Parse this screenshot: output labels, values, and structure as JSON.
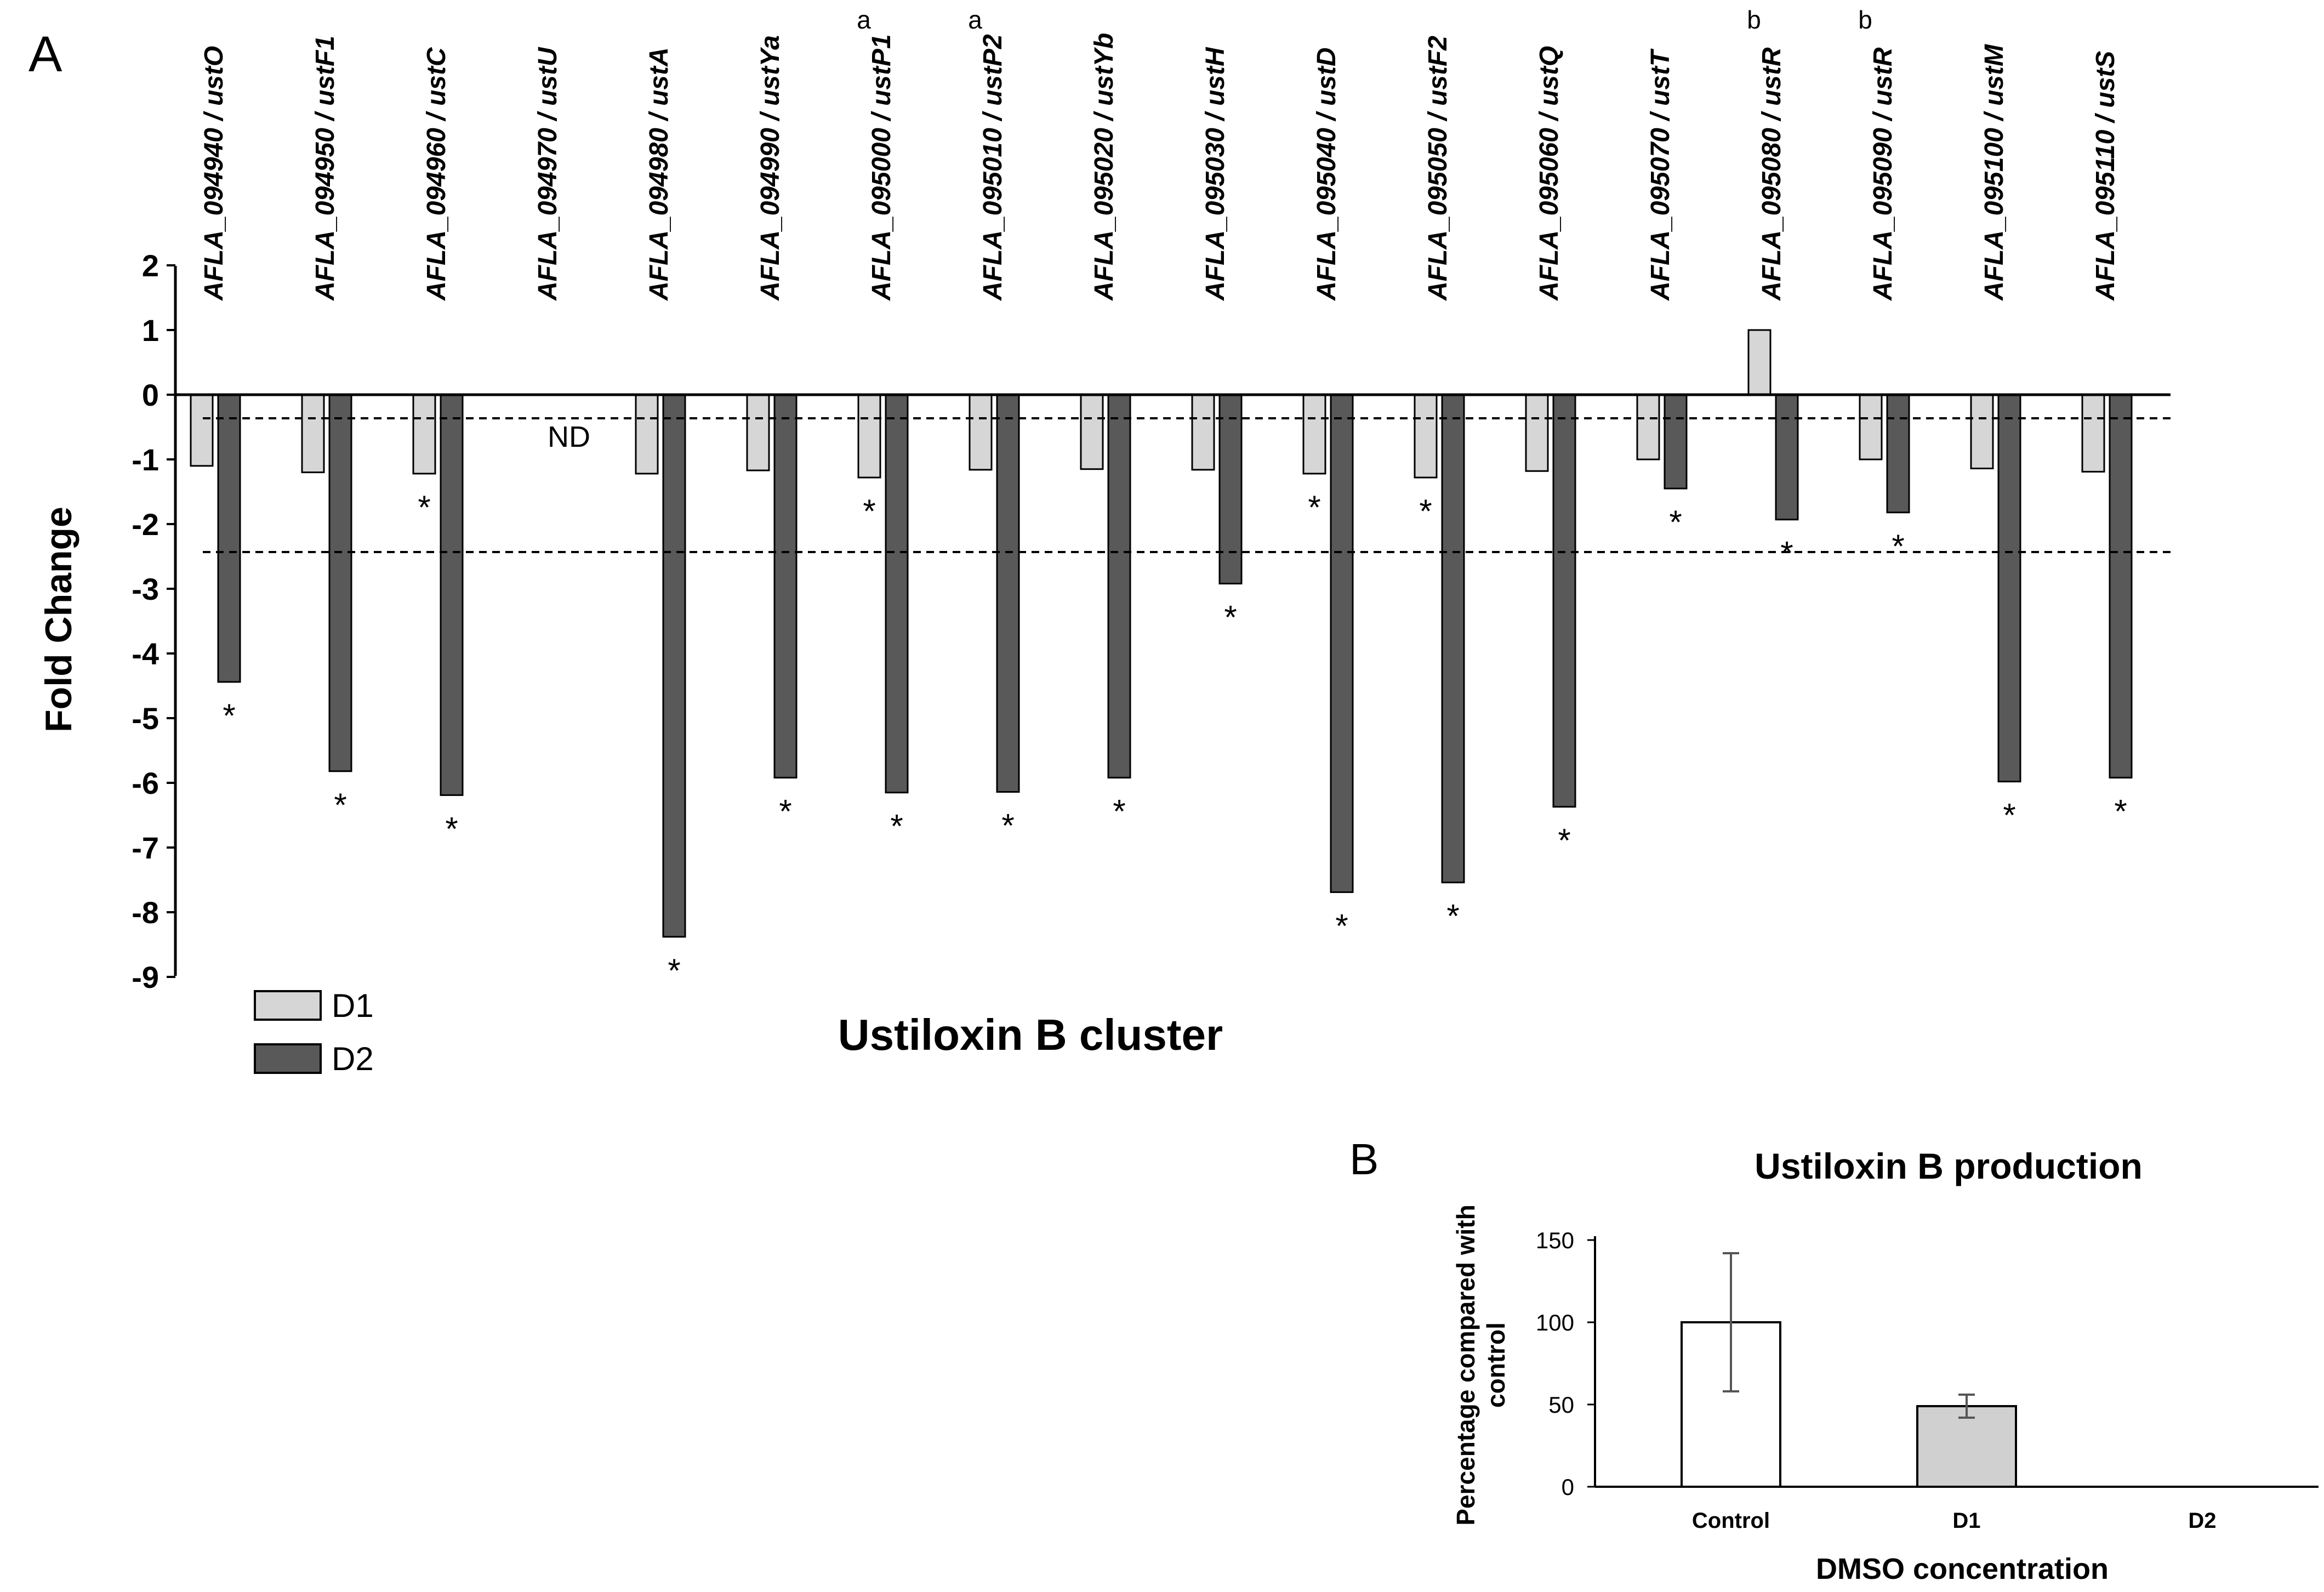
{
  "panel_a": {
    "letter": "A",
    "ylabel": "Fold Change",
    "xlabel": "Ustiloxin B cluster",
    "y_ticks": [
      "2",
      "1",
      "0",
      "-1",
      "-2",
      "-3",
      "-4",
      "-5",
      "-6",
      "-7",
      "-8",
      "-9"
    ],
    "nd_label": "ND",
    "sig_mark": "*",
    "legend": [
      "D1",
      "D2"
    ]
  },
  "panel_b": {
    "letter": "B",
    "title": "Ustiloxin B production",
    "ylabel_line1": "Percentage compared with",
    "ylabel_line2": "control",
    "xlabel": "DMSO concentration",
    "y_ticks": [
      "150",
      "100",
      "50",
      "0"
    ]
  },
  "colors": {
    "d1": "#d6d6d6",
    "d2": "#595959",
    "control": "#ffffff",
    "b_d1": "#d0d0d0",
    "axis": "#000000"
  },
  "chart_data": [
    {
      "type": "bar",
      "title": "",
      "xlabel": "Ustiloxin B cluster",
      "ylabel": "Fold Change",
      "ylim": [
        -9,
        2
      ],
      "categories": [
        "AFLA_094940",
        "AFLA_094950",
        "AFLA_094960",
        "AFLA_094970",
        "AFLA_094980",
        "AFLA_094990",
        "AFLA_095000",
        "AFLA_095010",
        "AFLA_095020",
        "AFLA_095030",
        "AFLA_095040",
        "AFLA_095050",
        "AFLA_095060",
        "AFLA_095070",
        "AFLA_095080",
        "AFLA_095090",
        "AFLA_095100",
        "AFLA_095110"
      ],
      "genes": [
        "ustO",
        "ustF1",
        "ustC",
        "ustU",
        "ustA",
        "ustYa",
        "ustP1",
        "ustP2",
        "ustYb",
        "ustH",
        "ustD",
        "ustF2",
        "ustQ",
        "ustT",
        "ustR",
        "ustR",
        "ustM",
        "ustS"
      ],
      "superscripts": [
        "",
        "",
        "",
        "",
        "",
        "",
        "a",
        "a",
        "",
        "",
        "",
        "",
        "",
        "",
        "b",
        "b",
        "",
        ""
      ],
      "series": [
        {
          "name": "D1",
          "values": [
            -1.1,
            -1.2,
            -1.22,
            null,
            -1.22,
            -1.17,
            -1.28,
            -1.16,
            -1.15,
            -1.16,
            -1.22,
            -1.28,
            -1.18,
            -1.0,
            1.0,
            -1.0,
            -1.14,
            -1.19
          ],
          "significant": [
            false,
            false,
            true,
            false,
            false,
            false,
            true,
            false,
            false,
            false,
            true,
            true,
            false,
            false,
            false,
            false,
            false,
            false
          ]
        },
        {
          "name": "D2",
          "values": [
            -4.44,
            -5.82,
            -6.19,
            null,
            -8.38,
            -5.92,
            -6.15,
            -6.14,
            -5.92,
            -2.92,
            -7.69,
            -7.54,
            -6.37,
            -1.45,
            -1.93,
            -1.82,
            -5.98,
            -5.92
          ],
          "significant": [
            true,
            true,
            true,
            false,
            true,
            true,
            true,
            true,
            true,
            true,
            true,
            true,
            true,
            true,
            true,
            true,
            true,
            true
          ]
        }
      ],
      "not_detected": [
        "AFLA_094970"
      ],
      "reference_lines": [
        -0.35,
        -2.45
      ],
      "legend_position": "bottom-left"
    },
    {
      "type": "bar",
      "title": "Ustiloxin B production",
      "xlabel": "DMSO concentration",
      "ylabel": "Percentage compared with control",
      "ylim": [
        0,
        150
      ],
      "categories": [
        "Control",
        "D1",
        "D2"
      ],
      "values": [
        100,
        49,
        0
      ],
      "errors": [
        42,
        7,
        0
      ]
    }
  ]
}
